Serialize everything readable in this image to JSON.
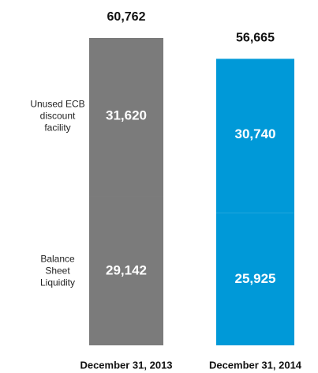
{
  "chart_data": {
    "type": "stacked_bar",
    "categories": [
      "December 31, 2013",
      "December 31, 2014"
    ],
    "series": [
      {
        "name": "Balance Sheet Liquidity",
        "color": "#7b7b7b",
        "colors": [
          "#7b7b7b",
          "#0099d8"
        ],
        "values": [
          29142,
          25925
        ],
        "value_labels": [
          "29,142",
          "25,925"
        ]
      },
      {
        "name": "Unused ECB discount facility",
        "color": "#7b7b7b",
        "colors": [
          "#7b7b7b",
          "#0099d8"
        ],
        "values": [
          31620,
          30740
        ],
        "value_labels": [
          "31,620",
          "30,740"
        ]
      }
    ],
    "totals": [
      60762,
      56665
    ],
    "total_labels": [
      "60,762",
      "56,665"
    ]
  }
}
